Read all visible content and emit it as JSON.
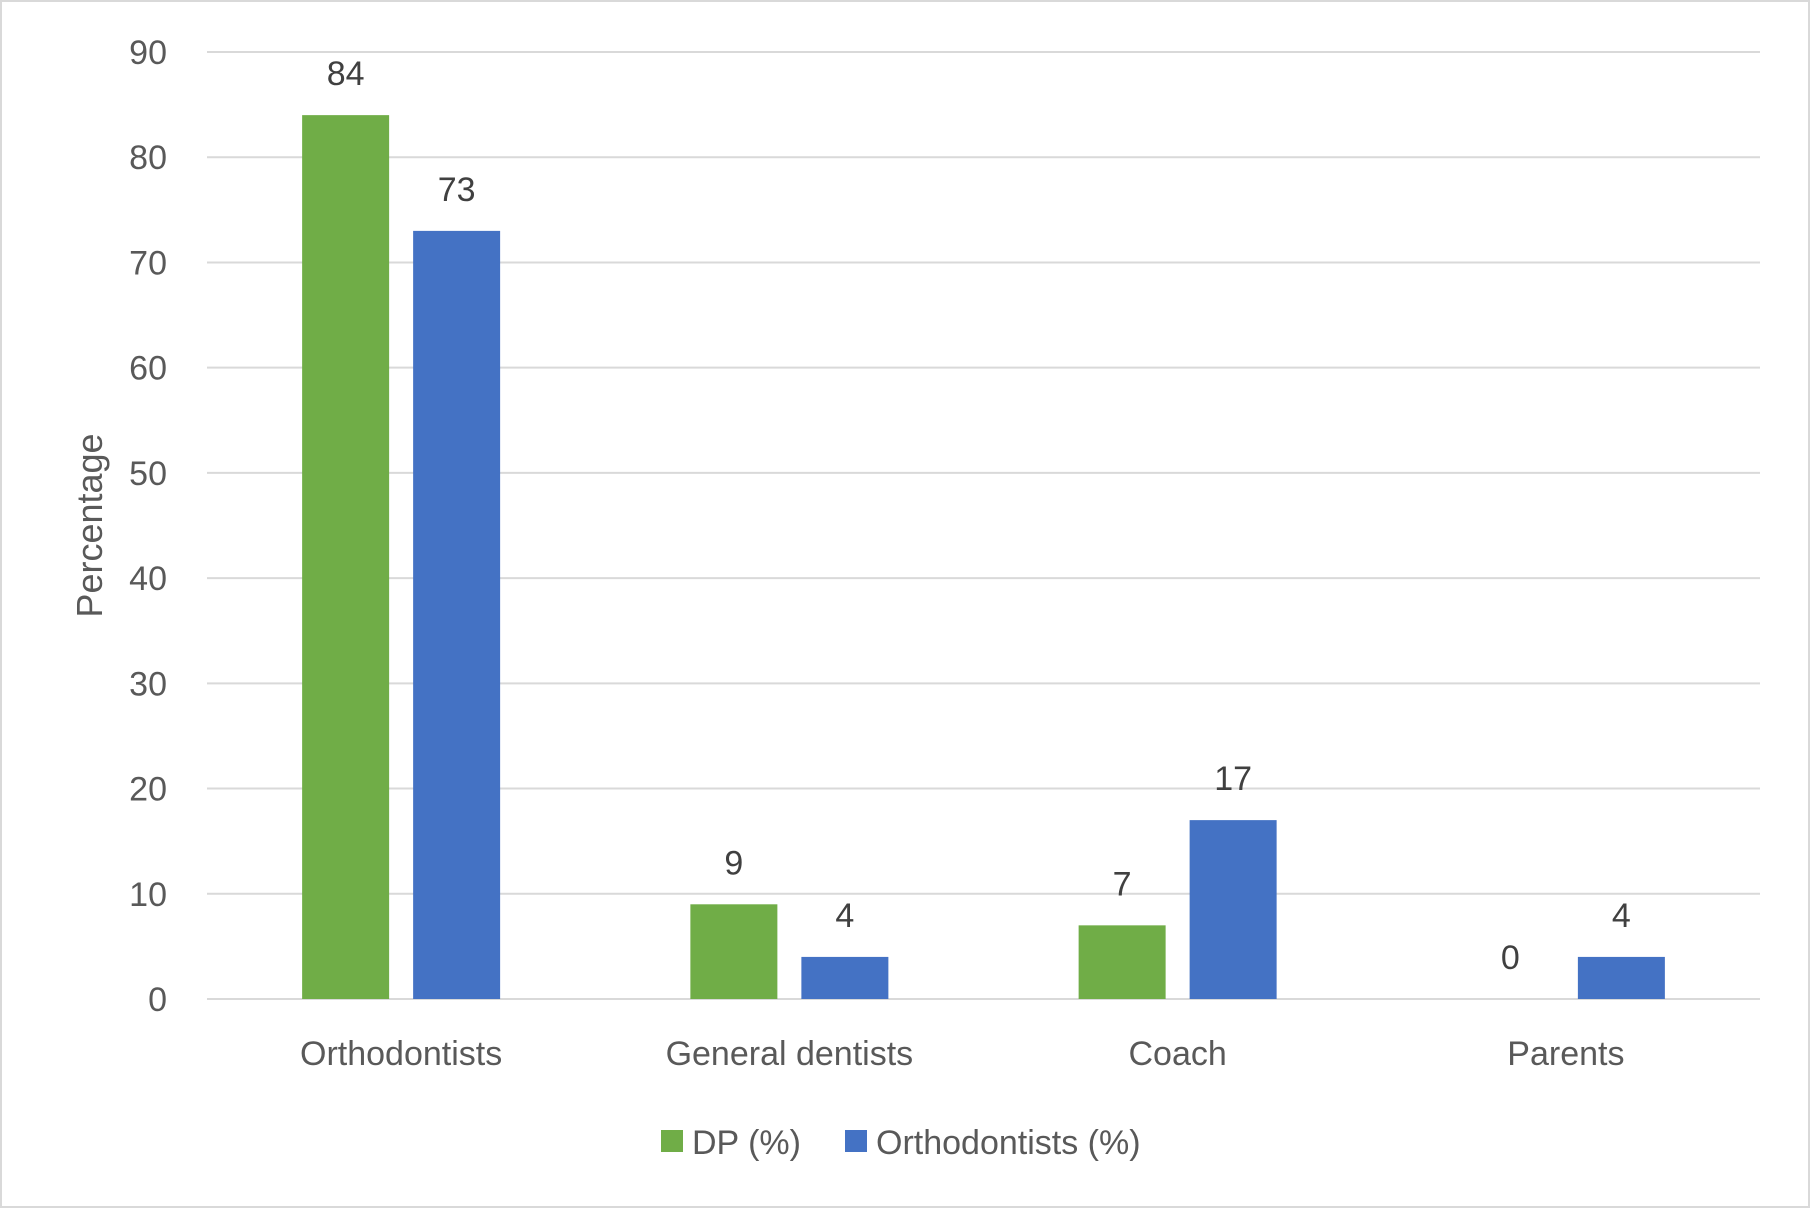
{
  "chart_data": {
    "type": "bar",
    "categories": [
      "Orthodontists",
      "General dentists",
      "Coach",
      "Parents"
    ],
    "series": [
      {
        "name": "DP (%)",
        "color": "#70ad47",
        "values": [
          84,
          9,
          7,
          0
        ]
      },
      {
        "name": "Orthodontists (%)",
        "color": "#4472c4",
        "values": [
          73,
          4,
          17,
          4
        ]
      }
    ],
    "title": "",
    "xlabel": "",
    "ylabel": "Percentage",
    "ylim": [
      0,
      90
    ],
    "yticks": [
      0,
      10,
      20,
      30,
      40,
      50,
      60,
      70,
      80,
      90
    ],
    "grid": true,
    "legend_position": "bottom",
    "data_labels": true
  }
}
